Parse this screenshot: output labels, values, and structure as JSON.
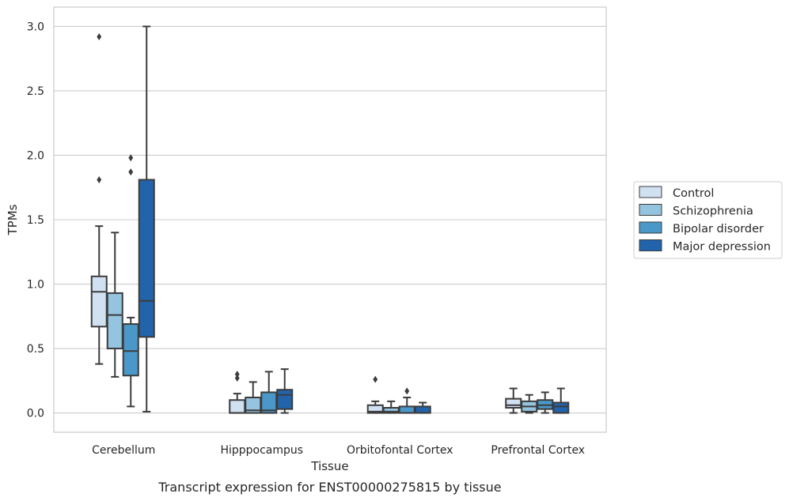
{
  "chart_data": {
    "type": "boxplot",
    "xlabel": "Tissue",
    "ylabel": "TPMs",
    "caption": "Transcript expression for ENST00000275815 by tissue",
    "ylim": [
      -0.15,
      3.15
    ],
    "yticks": [
      "0.0",
      "0.5",
      "1.0",
      "1.5",
      "2.0",
      "2.5",
      "3.0"
    ],
    "ytick_values": [
      0,
      0.5,
      1.0,
      1.5,
      2.0,
      2.5,
      3.0
    ],
    "grid": true,
    "legend_position": "center-right",
    "categories": [
      "Cerebellum",
      "Hipppocampus",
      "Orbitofontal Cortex",
      "Prefrontal Cortex"
    ],
    "series": [
      {
        "name": "Control",
        "color": "#d0e1f2",
        "boxes": [
          {
            "whislo": 0.38,
            "q1": 0.67,
            "med": 0.94,
            "q3": 1.06,
            "whishi": 1.45,
            "fliers": [
              1.81,
              2.92
            ]
          },
          {
            "whislo": 0.0,
            "q1": 0.0,
            "med": 0.0,
            "q3": 0.1,
            "whishi": 0.15,
            "fliers": [
              0.27,
              0.3
            ]
          },
          {
            "whislo": 0.0,
            "q1": 0.0,
            "med": 0.01,
            "q3": 0.06,
            "whishi": 0.09,
            "fliers": [
              0.26
            ]
          },
          {
            "whislo": 0.0,
            "q1": 0.04,
            "med": 0.06,
            "q3": 0.11,
            "whishi": 0.19,
            "fliers": []
          }
        ]
      },
      {
        "name": "Schizophrenia",
        "color": "#94c4df",
        "boxes": [
          {
            "whislo": 0.28,
            "q1": 0.5,
            "med": 0.76,
            "q3": 0.93,
            "whishi": 1.4,
            "fliers": []
          },
          {
            "whislo": 0.0,
            "q1": 0.0,
            "med": 0.02,
            "q3": 0.12,
            "whishi": 0.24,
            "fliers": []
          },
          {
            "whislo": 0.0,
            "q1": 0.0,
            "med": 0.01,
            "q3": 0.04,
            "whishi": 0.09,
            "fliers": []
          },
          {
            "whislo": 0.0,
            "q1": 0.01,
            "med": 0.05,
            "q3": 0.09,
            "whishi": 0.14,
            "fliers": []
          }
        ]
      },
      {
        "name": "Bipolar disorder",
        "color": "#4a98c9",
        "boxes": [
          {
            "whislo": 0.05,
            "q1": 0.29,
            "med": 0.48,
            "q3": 0.69,
            "whishi": 0.74,
            "fliers": [
              1.87,
              1.98
            ]
          },
          {
            "whislo": 0.0,
            "q1": 0.0,
            "med": 0.02,
            "q3": 0.16,
            "whishi": 0.32,
            "fliers": []
          },
          {
            "whislo": 0.0,
            "q1": 0.0,
            "med": 0.0,
            "q3": 0.05,
            "whishi": 0.12,
            "fliers": [
              0.17
            ]
          },
          {
            "whislo": 0.0,
            "q1": 0.03,
            "med": 0.06,
            "q3": 0.1,
            "whishi": 0.16,
            "fliers": []
          }
        ]
      },
      {
        "name": "Major depression",
        "color": "#2164ab",
        "boxes": [
          {
            "whislo": 0.01,
            "q1": 0.59,
            "med": 0.87,
            "q3": 1.81,
            "whishi": 3.0,
            "fliers": []
          },
          {
            "whislo": 0.0,
            "q1": 0.03,
            "med": 0.14,
            "q3": 0.18,
            "whishi": 0.34,
            "fliers": []
          },
          {
            "whislo": 0.0,
            "q1": 0.0,
            "med": 0.0,
            "q3": 0.05,
            "whishi": 0.08,
            "fliers": []
          },
          {
            "whislo": 0.0,
            "q1": 0.0,
            "med": 0.05,
            "q3": 0.08,
            "whishi": 0.19,
            "fliers": []
          }
        ]
      }
    ]
  }
}
